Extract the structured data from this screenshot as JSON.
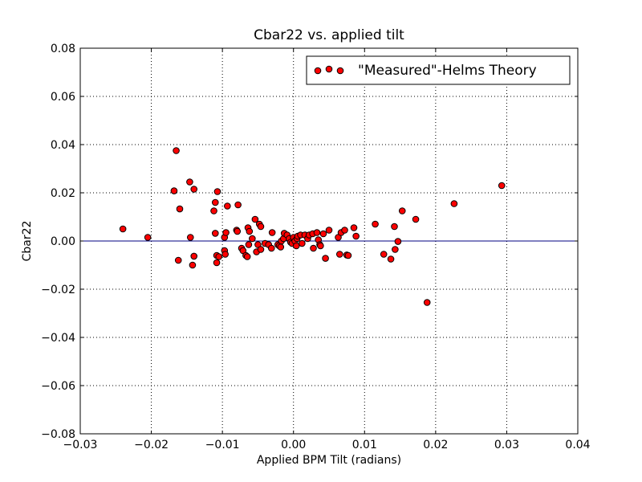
{
  "chart_data": {
    "type": "scatter",
    "title": "Cbar22 vs. applied tilt",
    "xlabel": "Applied BPM Tilt (radians)",
    "ylabel": "Cbar22",
    "xlim": [
      -0.03,
      0.04
    ],
    "ylim": [
      -0.08,
      0.08
    ],
    "xticks": [
      -0.03,
      -0.02,
      -0.01,
      0.0,
      0.01,
      0.02,
      0.03,
      0.04
    ],
    "xtick_labels": [
      "−0.03",
      "−0.02",
      "−0.01",
      "0.00",
      "0.01",
      "0.02",
      "0.03",
      "0.04"
    ],
    "yticks": [
      -0.08,
      -0.06,
      -0.04,
      -0.02,
      0.0,
      0.02,
      0.04,
      0.06,
      0.08
    ],
    "ytick_labels": [
      "−0.08",
      "−0.06",
      "−0.04",
      "−0.02",
      "0.00",
      "0.02",
      "0.04",
      "0.06",
      "0.08"
    ],
    "grid": true,
    "legend_position": "top-right",
    "reference_line": {
      "y": 0.0,
      "color": "#000080"
    },
    "series": [
      {
        "name": "\"Measured\"-Helms Theory",
        "marker_color": "#ff0000",
        "edge_color": "#000000",
        "points": [
          [
            -0.024,
            0.005
          ],
          [
            -0.0205,
            0.0015
          ],
          [
            -0.0165,
            0.0375
          ],
          [
            -0.0168,
            0.0208
          ],
          [
            -0.016,
            0.0133
          ],
          [
            -0.0162,
            -0.008
          ],
          [
            -0.0146,
            0.0245
          ],
          [
            -0.014,
            0.0215
          ],
          [
            -0.0145,
            0.0015
          ],
          [
            -0.014,
            -0.0063
          ],
          [
            -0.0142,
            -0.01
          ],
          [
            -0.0112,
            0.0125
          ],
          [
            -0.011,
            0.016
          ],
          [
            -0.0107,
            0.0205
          ],
          [
            -0.011,
            0.0032
          ],
          [
            -0.0108,
            -0.006
          ],
          [
            -0.0105,
            -0.0065
          ],
          [
            -0.0108,
            -0.009
          ],
          [
            -0.0097,
            0.0015
          ],
          [
            -0.0095,
            0.0035
          ],
          [
            -0.0093,
            0.0145
          ],
          [
            -0.0097,
            -0.004
          ],
          [
            -0.0096,
            -0.0055
          ],
          [
            -0.0078,
            0.015
          ],
          [
            -0.008,
            0.0045
          ],
          [
            -0.0079,
            0.004
          ],
          [
            -0.0073,
            -0.003
          ],
          [
            -0.0071,
            -0.004
          ],
          [
            -0.0067,
            -0.006
          ],
          [
            -0.0065,
            -0.0065
          ],
          [
            -0.0064,
            0.0055
          ],
          [
            -0.0062,
            0.004
          ],
          [
            -0.0058,
            0.001
          ],
          [
            -0.0063,
            -0.0015
          ],
          [
            -0.0054,
            0.009
          ],
          [
            -0.0048,
            0.007
          ],
          [
            -0.0046,
            0.006
          ],
          [
            -0.0052,
            -0.0045
          ],
          [
            -0.005,
            -0.0015
          ],
          [
            -0.0046,
            -0.0035
          ],
          [
            -0.004,
            -0.001
          ],
          [
            -0.0035,
            -0.0015
          ],
          [
            -0.003,
            0.0035
          ],
          [
            -0.0031,
            -0.003
          ],
          [
            -0.0022,
            -0.0015
          ],
          [
            -0.002,
            -0.002
          ],
          [
            -0.0018,
            -0.0025
          ],
          [
            -0.0017,
            0.0
          ],
          [
            -0.0014,
            0.001
          ],
          [
            -0.0013,
            0.0032
          ],
          [
            -0.0009,
            0.0025
          ],
          [
            -0.0006,
            0.001
          ],
          [
            -0.0004,
            -0.0005
          ],
          [
            -0.0002,
            -0.001
          ],
          [
            0.0,
            0.0015
          ],
          [
            0.0002,
            0.0
          ],
          [
            0.0004,
            -0.002
          ],
          [
            0.0005,
            0.001
          ],
          [
            0.0006,
            0.002
          ],
          [
            0.001,
            0.0025
          ],
          [
            0.0012,
            -0.001
          ],
          [
            0.0016,
            0.0025
          ],
          [
            0.002,
            0.001
          ],
          [
            0.0022,
            0.0025
          ],
          [
            0.0027,
            0.003
          ],
          [
            0.0028,
            -0.003
          ],
          [
            0.0033,
            0.0035
          ],
          [
            0.0035,
            0.0005
          ],
          [
            0.0037,
            -0.0015
          ],
          [
            0.0038,
            -0.002
          ],
          [
            0.0042,
            0.003
          ],
          [
            0.0045,
            -0.0072
          ],
          [
            0.005,
            0.0045
          ],
          [
            0.0063,
            0.0015
          ],
          [
            0.0065,
            -0.0055
          ],
          [
            0.0067,
            0.0035
          ],
          [
            0.0072,
            0.0045
          ],
          [
            0.0075,
            -0.0058
          ],
          [
            0.0077,
            -0.006
          ],
          [
            0.0085,
            0.0055
          ],
          [
            0.0088,
            0.002
          ],
          [
            0.0115,
            0.007
          ],
          [
            0.0127,
            -0.0055
          ],
          [
            0.0137,
            -0.0075
          ],
          [
            0.0142,
            0.006
          ],
          [
            0.0143,
            -0.0035
          ],
          [
            0.0147,
            -0.0002
          ],
          [
            0.0153,
            0.0125
          ],
          [
            0.0172,
            0.009
          ],
          [
            0.0188,
            -0.0255
          ],
          [
            0.0226,
            0.0155
          ],
          [
            0.0293,
            0.023
          ]
        ]
      }
    ]
  }
}
